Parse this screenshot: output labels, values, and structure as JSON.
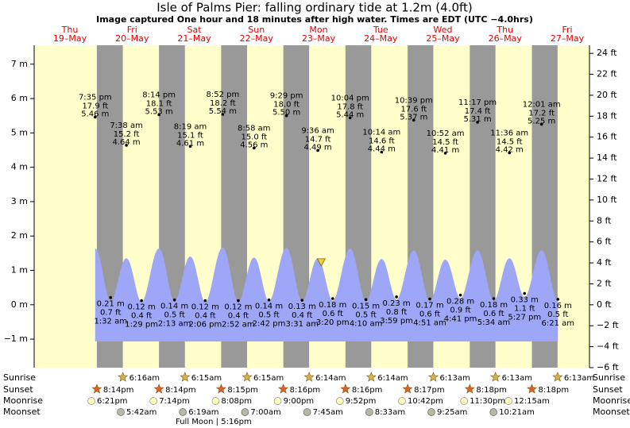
{
  "chart_data": {
    "type": "tide",
    "title": "Isle of Palms Pier: falling  ordinary tide at 1.2m (4.0ft)",
    "subtitle": "Image captured One hour and 18 minutes after high water. Times are EDT (UTC −4.0hrs)",
    "categories": [
      "Thu",
      "Fri",
      "Sat",
      "Sun",
      "Mon",
      "Tue",
      "Wed",
      "Thu",
      "Fri"
    ],
    "dates": [
      "19–May",
      "20–May",
      "21–May",
      "22–May",
      "23–May",
      "24–May",
      "25–May",
      "26–May",
      "27–May"
    ],
    "ylim": [
      -1.83,
      7.55
    ],
    "yticks": [
      {
        "value": -1,
        "label": "−1 m"
      },
      {
        "value": 0,
        "label": "0 m"
      },
      {
        "value": 1,
        "label": "1 m"
      },
      {
        "value": 2,
        "label": "2 m"
      },
      {
        "value": 3,
        "label": "3 m"
      },
      {
        "value": 4,
        "label": "4 m"
      },
      {
        "value": 5,
        "label": "5 m"
      },
      {
        "value": 6,
        "label": "6 m"
      },
      {
        "value": 7,
        "label": "7 m"
      }
    ],
    "y2lim": [
      -6,
      24.77
    ],
    "y2ticks": [
      {
        "value": -6,
        "label": "−6 ft"
      },
      {
        "value": -4,
        "label": "−4 ft"
      },
      {
        "value": -2,
        "label": "−2 ft"
      },
      {
        "value": 0,
        "label": "0 ft"
      },
      {
        "value": 2,
        "label": "2 ft"
      },
      {
        "value": 4,
        "label": "4 ft"
      },
      {
        "value": 6,
        "label": "6 ft"
      },
      {
        "value": 8,
        "label": "8 ft"
      },
      {
        "value": 10,
        "label": "10 ft"
      },
      {
        "value": 12,
        "label": "12 ft"
      },
      {
        "value": 14,
        "label": "14 ft"
      },
      {
        "value": 16,
        "label": "16 ft"
      },
      {
        "value": 18,
        "label": "18 ft"
      },
      {
        "value": 20,
        "label": "20 ft"
      },
      {
        "value": 22,
        "label": "22 ft"
      },
      {
        "value": 24,
        "label": "24 ft"
      }
    ],
    "events": {
      "times": [
        "7:35 pm",
        "1:32 am",
        "7:38 am",
        "1:29 pm",
        "8:14 pm",
        "2:13 am",
        "8:19 am",
        "2:06 pm",
        "8:52 pm",
        "2:52 am",
        "8:58 am",
        "2:42 pm",
        "9:29 pm",
        "3:31 am",
        "9:36 am",
        "3:20 pm",
        "10:04 pm",
        "4:10 am",
        "10:14 am",
        "3:59 pm",
        "10:39 pm",
        "4:51 am",
        "10:52 am",
        "4:41 pm",
        "11:17 pm",
        "5:34 am",
        "11:36 am",
        "5:27 pm",
        "12:01 am",
        "6:21 am"
      ],
      "values": [
        5.46,
        0.21,
        4.64,
        0.12,
        5.53,
        0.14,
        4.61,
        0.12,
        5.54,
        0.12,
        4.56,
        0.14,
        5.5,
        0.13,
        4.49,
        0.18,
        5.44,
        0.15,
        4.44,
        0.23,
        5.37,
        0.17,
        4.41,
        0.28,
        5.31,
        0.18,
        4.42,
        0.33,
        5.25,
        0.16
      ],
      "value_labels": [
        "5.46 m",
        "0.21 m",
        "4.64 m",
        "0.12 m",
        "5.53 m",
        "0.14 m",
        "4.61 m",
        "0.12 m",
        "5.54 m",
        "0.12 m",
        "4.56 m",
        "0.14 m",
        "5.50 m",
        "0.13 m",
        "4.49 m",
        "0.18 m",
        "5.44 m",
        "0.15 m",
        "4.44 m",
        "0.23 m",
        "5.37 m",
        "0.17 m",
        "4.41 m",
        "0.28 m",
        "5.31 m",
        "0.18 m",
        "4.42 m",
        "0.33 m",
        "5.25 m",
        "0.16 m"
      ],
      "ft_labels": [
        "17.9 ft",
        "0.7 ft",
        "15.2 ft",
        "0.4 ft",
        "18.1 ft",
        "0.5 ft",
        "15.1 ft",
        "0.4 ft",
        "18.2 ft",
        "0.4 ft",
        "15.0 ft",
        "0.5 ft",
        "18.0 ft",
        "0.4 ft",
        "14.7 ft",
        "0.6 ft",
        "17.8 ft",
        "0.5 ft",
        "14.6 ft",
        "0.8 ft",
        "17.6 ft",
        "0.6 ft",
        "14.5 ft",
        "0.9 ft",
        "17.4 ft",
        "0.6 ft",
        "14.5 ft",
        "1.1 ft",
        "17.2 ft",
        "0.5 ft"
      ]
    },
    "curve": {
      "color": "#9ea6f7",
      "values": [
        1.62,
        0.08,
        1.34,
        0.06,
        1.62,
        0.08,
        1.39,
        0.06,
        1.66,
        0.06,
        1.36,
        0.08,
        1.64,
        0.07,
        1.34,
        0.1,
        1.62,
        0.08,
        1.32,
        0.13,
        1.57,
        0.09,
        1.3,
        0.17,
        1.57,
        0.1,
        1.34,
        0.2,
        1.57,
        0.09
      ]
    },
    "current": {
      "value": 1.2,
      "color": "#f0d040"
    },
    "day_color": "#ffffcc",
    "night_color": "#999999",
    "day_label_color": "#e00000",
    "rows": {
      "labels": [
        "Sunrise",
        "Sunset",
        "Moonrise",
        "Moonset"
      ],
      "sunrise": [
        "6:16am",
        "6:15am",
        "6:15am",
        "6:14am",
        "6:14am",
        "6:13am",
        "6:13am",
        "6:13am"
      ],
      "sunset": [
        "8:14pm",
        "8:14pm",
        "8:15pm",
        "8:16pm",
        "8:16pm",
        "8:17pm",
        "8:18pm",
        "8:18pm"
      ],
      "moonrise": [
        "6:21pm",
        "7:14pm",
        "8:08pm",
        "9:00pm",
        "9:52pm",
        "10:42pm",
        "11:30pm",
        "12:15am"
      ],
      "moonset": [
        "5:42am",
        "6:19am",
        "7:00am",
        "7:45am",
        "8:33am",
        "9:25am",
        "10:21am"
      ]
    },
    "note": "Full Moon | 5:16pm"
  }
}
